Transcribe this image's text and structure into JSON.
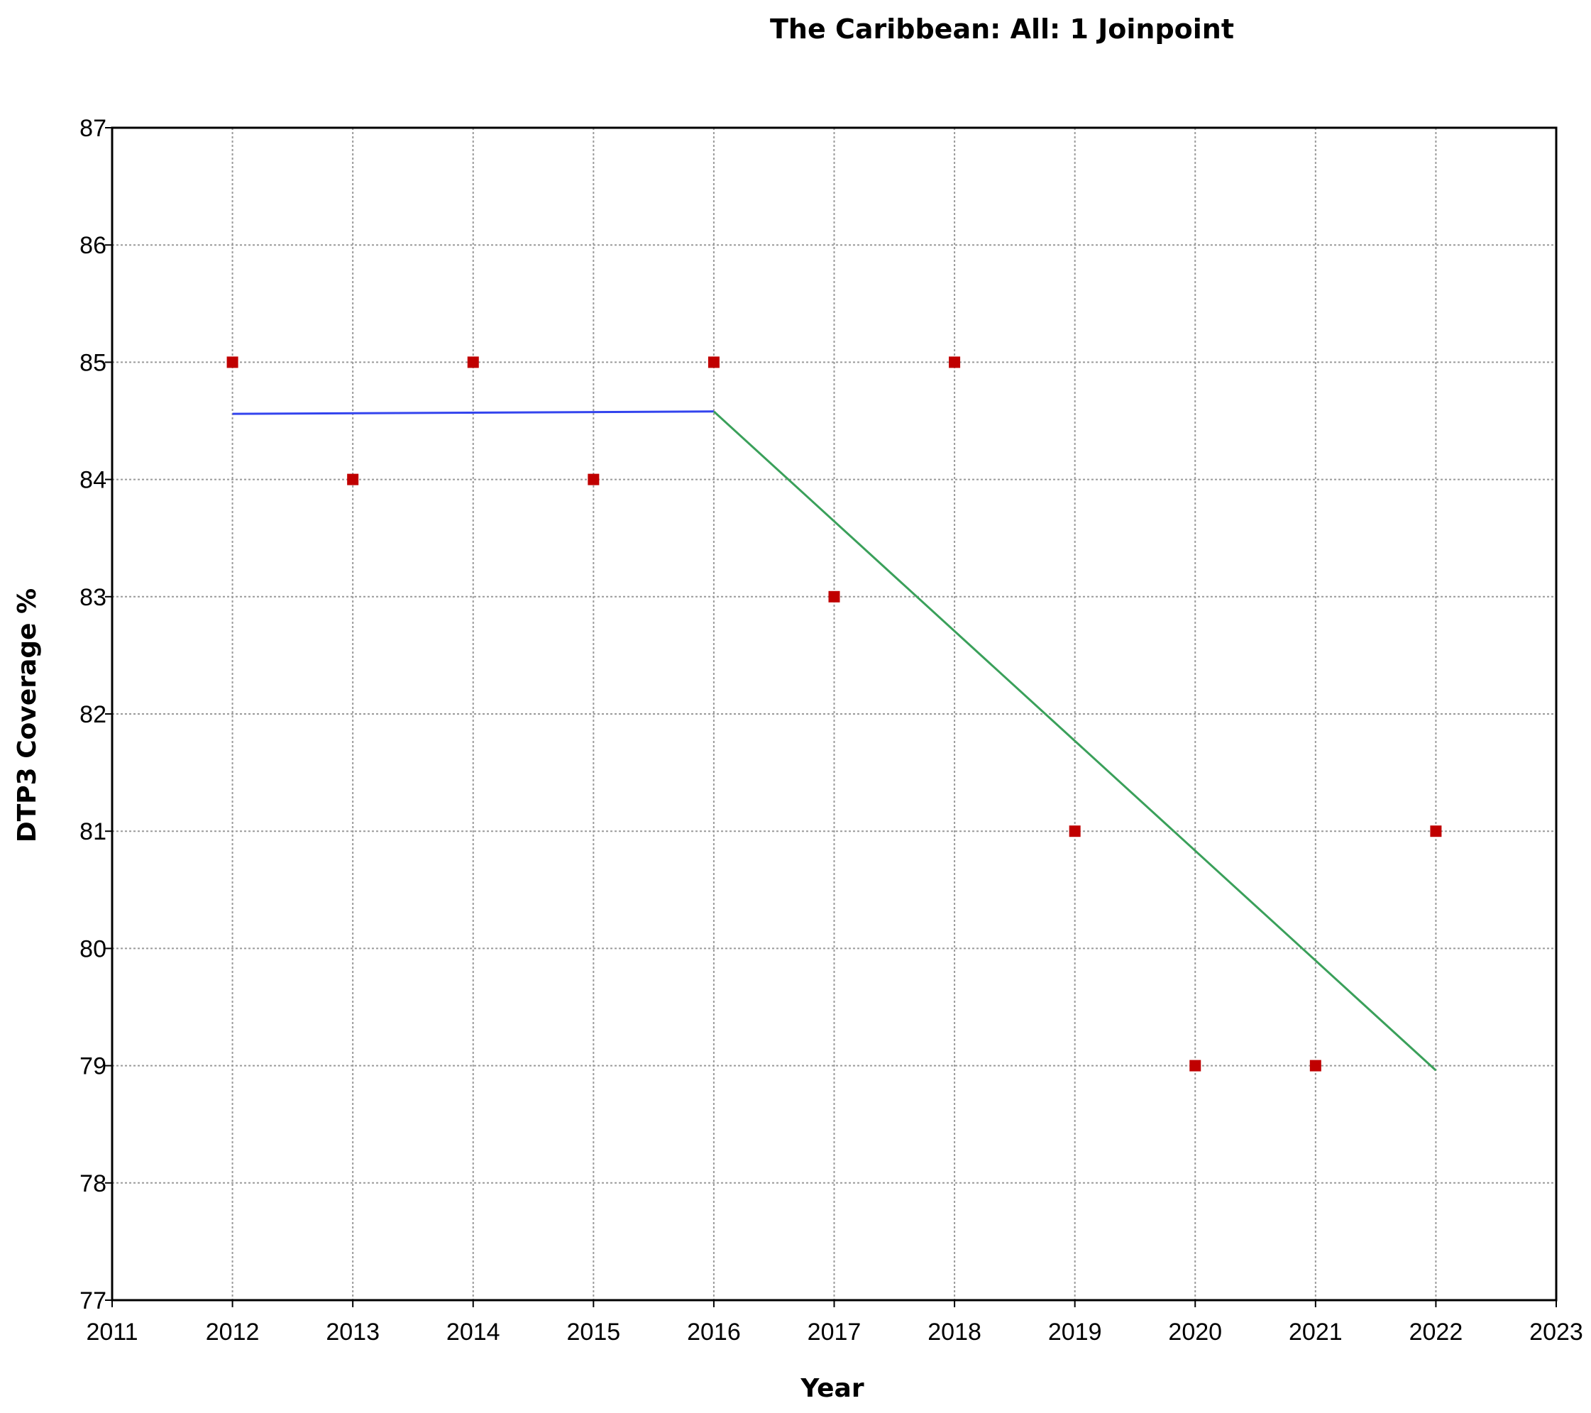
{
  "chart_data": {
    "type": "scatter",
    "title": "The Caribbean: All: 1 Joinpoint",
    "xlabel": "Year",
    "ylabel": "DTP3 Coverage %",
    "xlim": [
      2011,
      2023
    ],
    "ylim": [
      77,
      87
    ],
    "x_ticks": [
      2011,
      2012,
      2013,
      2014,
      2015,
      2016,
      2017,
      2018,
      2019,
      2020,
      2021,
      2022,
      2023
    ],
    "y_ticks": [
      77,
      78,
      79,
      80,
      81,
      82,
      83,
      84,
      85,
      86,
      87
    ],
    "grid": true,
    "observed": {
      "color": "#c00000",
      "points": [
        {
          "x": 2012,
          "y": 85
        },
        {
          "x": 2013,
          "y": 84
        },
        {
          "x": 2014,
          "y": 85
        },
        {
          "x": 2015,
          "y": 84
        },
        {
          "x": 2016,
          "y": 85
        },
        {
          "x": 2017,
          "y": 83
        },
        {
          "x": 2018,
          "y": 85
        },
        {
          "x": 2019,
          "y": 81
        },
        {
          "x": 2020,
          "y": 79
        },
        {
          "x": 2021,
          "y": 79
        },
        {
          "x": 2022,
          "y": 81
        }
      ]
    },
    "segments": [
      {
        "color": "#3344ee",
        "points": [
          {
            "x": 2012,
            "y": 84.56
          },
          {
            "x": 2016,
            "y": 84.58
          }
        ]
      },
      {
        "color": "#3aa05a",
        "points": [
          {
            "x": 2016,
            "y": 84.58
          },
          {
            "x": 2022,
            "y": 78.96
          }
        ]
      }
    ]
  }
}
